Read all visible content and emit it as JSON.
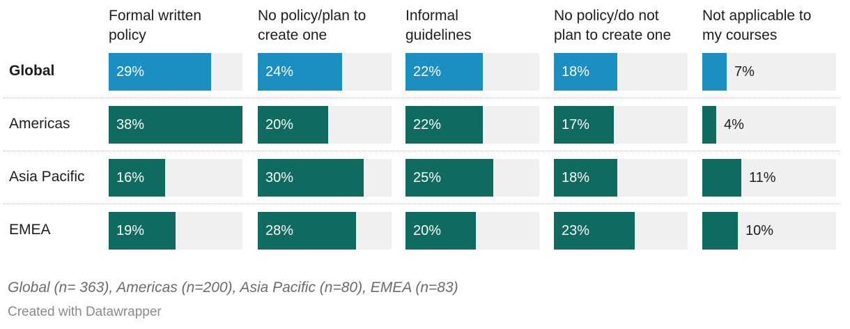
{
  "chart_data": {
    "type": "bar",
    "columns": [
      {
        "label_line1": "Formal written",
        "label_line2": "policy"
      },
      {
        "label_line1": "No policy/plan to",
        "label_line2": "create one"
      },
      {
        "label_line1": "Informal",
        "label_line2": "guidelines"
      },
      {
        "label_line1": "No policy/do not",
        "label_line2": "plan to create one"
      },
      {
        "label_line1": "Not applicable to",
        "label_line2": "my courses"
      }
    ],
    "rows": [
      {
        "label": "Global",
        "bold": true,
        "color": "#1a8fc0",
        "values": [
          29,
          24,
          22,
          18,
          7
        ],
        "labels": [
          "29%",
          "24%",
          "22%",
          "18%",
          "7%"
        ]
      },
      {
        "label": "Americas",
        "bold": false,
        "color": "#0f6b5f",
        "values": [
          38,
          20,
          22,
          17,
          4
        ],
        "labels": [
          "38%",
          "20%",
          "22%",
          "17%",
          "4%"
        ]
      },
      {
        "label": "Asia Pacific",
        "bold": false,
        "color": "#0f6b5f",
        "values": [
          16,
          30,
          25,
          18,
          11
        ],
        "labels": [
          "16%",
          "30%",
          "25%",
          "18%",
          "11%"
        ]
      },
      {
        "label": "EMEA",
        "bold": false,
        "color": "#0f6b5f",
        "values": [
          19,
          28,
          20,
          23,
          10
        ],
        "labels": [
          "19%",
          "28%",
          "20%",
          "23%",
          "10%"
        ]
      }
    ],
    "xlim": [
      0,
      38
    ]
  },
  "footnote": "Global (n= 363), Americas (n=200), Asia Pacific (n=80), EMEA (n=83)",
  "credit": "Created with Datawrapper",
  "colors": {
    "track": "#f0f0f0",
    "global": "#1a8fc0",
    "region": "#0f6b5f"
  }
}
